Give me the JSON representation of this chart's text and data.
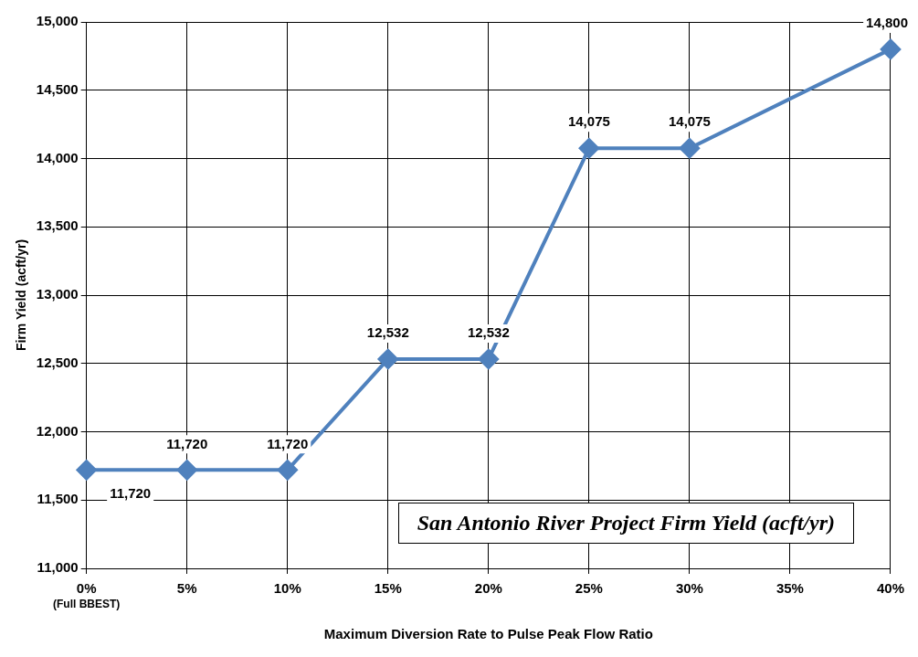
{
  "chart_data": {
    "type": "line",
    "title": "San Antonio River Project Firm Yield (acft/yr)",
    "xlabel": "Maximum Diversion Rate to Pulse Peak Flow Ratio",
    "ylabel": "Firm Yield (acft/yr)",
    "categories": [
      "0%",
      "5%",
      "10%",
      "15%",
      "20%",
      "25%",
      "30%",
      "35%",
      "40%"
    ],
    "series": [
      {
        "color": "#4f81bd",
        "values": [
          11720,
          11720,
          11720,
          12532,
          12532,
          14075,
          14075,
          null,
          14800
        ],
        "value_labels": [
          "11,720",
          "11,720",
          "11,720",
          "12,532",
          "12,532",
          "14,075",
          "14,075",
          null,
          "14,800"
        ]
      }
    ],
    "ylim": [
      11000,
      15000
    ],
    "yticks": [
      {
        "value": 11000,
        "label": "11,000"
      },
      {
        "value": 11500,
        "label": "11,500"
      },
      {
        "value": 12000,
        "label": "12,000"
      },
      {
        "value": 12500,
        "label": "12,500"
      },
      {
        "value": 13000,
        "label": "13,000"
      },
      {
        "value": 13500,
        "label": "13,500"
      },
      {
        "value": 14000,
        "label": "14,000"
      },
      {
        "value": 14500,
        "label": "14,500"
      },
      {
        "value": 15000,
        "label": "15,000"
      }
    ],
    "annotations": [
      "(Full BBEST)"
    ],
    "grid": true,
    "legend": false,
    "marker": "diamond",
    "line_style": "solid"
  }
}
